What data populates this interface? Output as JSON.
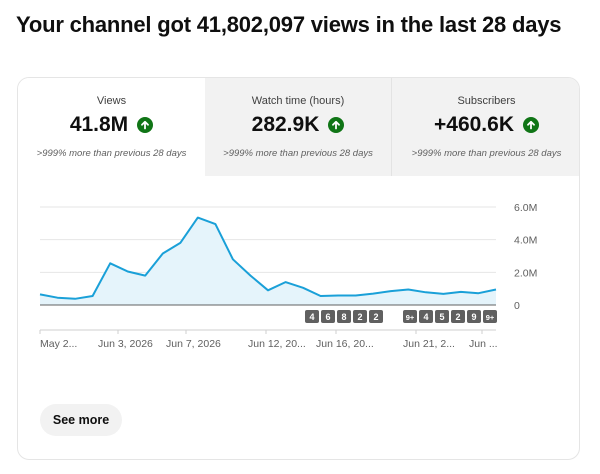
{
  "headline": "Your channel got 41,802,097 views in the last 28 days",
  "tabs": [
    {
      "label": "Views",
      "value": "41.8M",
      "comparison": ">999% more than previous 28 days",
      "active": true
    },
    {
      "label": "Watch time (hours)",
      "value": "282.9K",
      "comparison": ">999% more than previous 28 days",
      "active": false
    },
    {
      "label": "Subscribers",
      "value": "+460.6K",
      "comparison": ">999% more than previous 28 days",
      "active": false
    }
  ],
  "icons": {
    "trend": "arrow-up-circle-icon"
  },
  "colors": {
    "line": "#1aa0d8",
    "fill": "#e5f4fb",
    "up_badge": "#107516",
    "marker_bg": "#606060"
  },
  "chart_data": {
    "type": "area",
    "series": [
      {
        "values": [
          0.65,
          0.45,
          0.38,
          0.55,
          2.55,
          2.05,
          1.8,
          3.15,
          3.8,
          5.35,
          4.95,
          2.8,
          1.8,
          0.9,
          1.4,
          1.05,
          0.55,
          0.58,
          0.58,
          0.7,
          0.85,
          0.95,
          0.78,
          0.68,
          0.8,
          0.72,
          0.95
        ]
      }
    ],
    "x_tick_labels": [
      "May 2...",
      "Jun 3, 2026",
      "Jun 7, 2026",
      "Jun 12, 20...",
      "Jun 16, 20...",
      "Jun 21, 2...",
      "Jun ..."
    ],
    "y_tick_labels": [
      "6.0M",
      "4.0M",
      "2.0M",
      "0"
    ],
    "ylim": [
      0,
      6.0
    ],
    "grid": true,
    "event_markers": [
      "4",
      "6",
      "8",
      "2",
      "2",
      "9+",
      "4",
      "5",
      "2",
      "9",
      "9+"
    ]
  },
  "see_more": "See more"
}
